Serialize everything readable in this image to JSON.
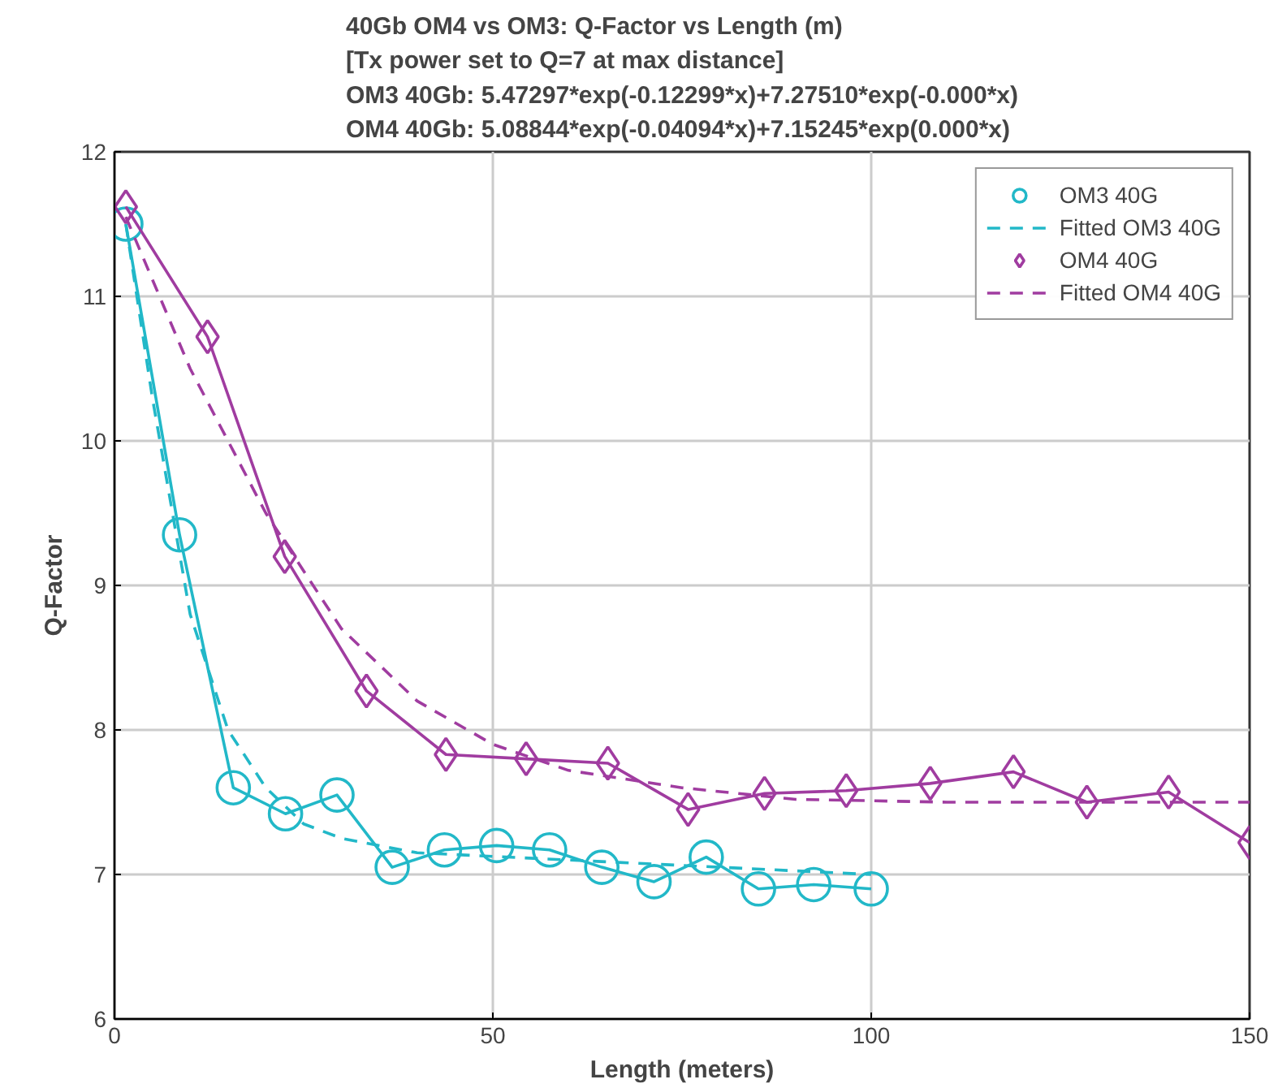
{
  "chart_data": {
    "type": "line",
    "title": "40Gb OM4 vs OM3: Q-Factor vs Length (m)\n[Tx power set to Q=7 at max distance]\nOM3 40Gb: 5.47297*exp(-0.12299*x)+7.27510*exp(-0.000*x)\nOM4 40Gb: 5.08844*exp(-0.04094*x)+7.15245*exp(0.000*x)",
    "xlabel": "Length (meters)",
    "ylabel": "Q-Factor",
    "xlim": [
      0,
      150
    ],
    "ylim": [
      6,
      12
    ],
    "xticks": [
      0,
      50,
      100,
      150
    ],
    "yticks": [
      6,
      7,
      8,
      9,
      10,
      11,
      12
    ],
    "grid": true,
    "legend": "top right",
    "series": [
      {
        "name": "OM3 40G",
        "color": "#22b8c8",
        "marker": "circle",
        "line_style": "solid",
        "x": [
          1.5,
          8.6,
          15.7,
          22.6,
          29.4,
          36.7,
          43.6,
          50.5,
          57.5,
          64.4,
          71.3,
          78.2,
          85.1,
          92.4,
          100
        ],
        "values": [
          11.5,
          9.35,
          7.6,
          7.42,
          7.55,
          7.05,
          7.17,
          7.2,
          7.17,
          7.05,
          6.95,
          7.12,
          6.9,
          6.93,
          6.9
        ]
      },
      {
        "name": "Fitted OM3 40G",
        "color": "#22b8c8",
        "marker": "none",
        "line_style": "dashed",
        "x": [
          1.5,
          5,
          10,
          15,
          20,
          25,
          30,
          40,
          60,
          80,
          100
        ],
        "values": [
          11.5,
          10.3,
          8.8,
          8.0,
          7.6,
          7.35,
          7.25,
          7.15,
          7.1,
          7.05,
          7.0
        ]
      },
      {
        "name": "OM4 40G",
        "color": "#a03ca0",
        "marker": "diamond",
        "line_style": "solid",
        "x": [
          1.5,
          12.3,
          22.5,
          33.3,
          43.8,
          54.4,
          65.2,
          75.8,
          85.9,
          96.7,
          107.8,
          118.8,
          128.5,
          139.3,
          150
        ],
        "values": [
          11.62,
          10.72,
          9.2,
          8.27,
          7.83,
          7.8,
          7.77,
          7.45,
          7.56,
          7.58,
          7.63,
          7.71,
          7.5,
          7.57,
          7.22
        ]
      },
      {
        "name": "Fitted OM4 40G",
        "color": "#a03ca0",
        "marker": "none",
        "line_style": "dashed",
        "x": [
          1.5,
          10,
          20,
          30,
          40,
          50,
          60,
          75,
          90,
          110,
          150
        ],
        "values": [
          11.55,
          10.5,
          9.5,
          8.7,
          8.2,
          7.9,
          7.72,
          7.6,
          7.52,
          7.5,
          7.5
        ]
      }
    ]
  }
}
